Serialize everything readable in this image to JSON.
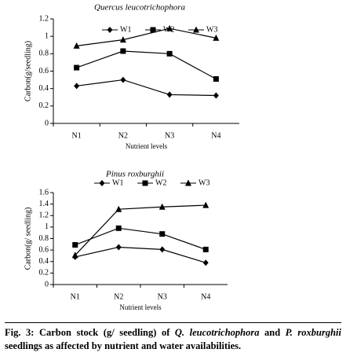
{
  "chart_data": [
    {
      "type": "line",
      "title": "Quercus leucotrichophora",
      "x_label": "Nutrient levels",
      "y_label": "Carbon(g/seedling)",
      "categories": [
        "N1",
        "N2",
        "N3",
        "N4"
      ],
      "series": [
        {
          "name": "W1",
          "color": "#000000",
          "marker": "diamond",
          "values": [
            0.43,
            0.5,
            0.33,
            0.32
          ]
        },
        {
          "name": "W2",
          "color": "#000000",
          "marker": "square",
          "values": [
            0.64,
            0.83,
            0.8,
            0.51
          ]
        },
        {
          "name": "W3",
          "color": "#000000",
          "marker": "triangle",
          "values": [
            0.89,
            0.96,
            1.09,
            0.98
          ]
        }
      ],
      "ylim": [
        0,
        1.2
      ],
      "yticks": [
        0,
        0.2,
        0.4,
        0.6,
        0.8,
        1,
        1.2
      ],
      "grid": false,
      "legend": "top"
    },
    {
      "type": "line",
      "title": "Pinus roxburghii",
      "x_label": "Nutrient levels",
      "y_label": "Carbon(g/ seedling)",
      "categories": [
        "N1",
        "N2",
        "N3",
        "N4"
      ],
      "series": [
        {
          "name": "W1",
          "color": "#000000",
          "marker": "diamond",
          "values": [
            0.48,
            0.65,
            0.61,
            0.38
          ]
        },
        {
          "name": "W2",
          "color": "#000000",
          "marker": "square",
          "values": [
            0.69,
            0.98,
            0.88,
            0.61
          ]
        },
        {
          "name": "W3",
          "color": "#000000",
          "marker": "triangle",
          "values": [
            0.51,
            1.31,
            1.35,
            1.38
          ]
        }
      ],
      "ylim": [
        0,
        1.6
      ],
      "yticks": [
        0,
        0.2,
        0.4,
        0.6,
        0.8,
        1,
        1.2,
        1.4,
        1.6
      ],
      "grid": false,
      "legend": "top"
    }
  ],
  "caption": [
    {
      "text": "Fig. 3: Carbon stock (g/ seedling) of ",
      "italic": false
    },
    {
      "text": "Q. leucotrichophora",
      "italic": true
    },
    {
      "text": " and ",
      "italic": false
    },
    {
      "text": "P. roxburghii",
      "italic": true
    },
    {
      "text": " seedlings as affected by nutrient and water availabilities.",
      "italic": false
    }
  ]
}
